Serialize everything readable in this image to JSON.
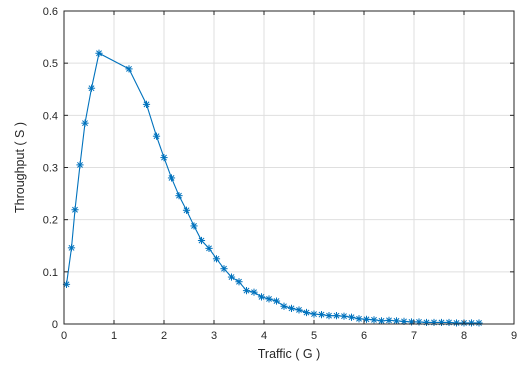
{
  "chart_data": {
    "type": "line",
    "title": "",
    "xlabel": "Traffic ( G )",
    "ylabel": "Throughput ( S )",
    "xlim": [
      0,
      9
    ],
    "ylim": [
      0,
      0.6
    ],
    "xticks": [
      0,
      1,
      2,
      3,
      4,
      5,
      6,
      7,
      8,
      9
    ],
    "yticks": [
      0,
      0.1,
      0.2,
      0.3,
      0.4,
      0.5,
      0.6
    ],
    "xtick_labels": [
      "0",
      "1",
      "2",
      "3",
      "4",
      "5",
      "6",
      "7",
      "8",
      "9"
    ],
    "ytick_labels": [
      "0",
      "0.1",
      "0.2",
      "0.3",
      "0.4",
      "0.5",
      "0.6"
    ],
    "grid": true,
    "legend": "none",
    "marker": "asterisk",
    "line_color": "#0072BD",
    "series": [
      {
        "x": [
          0.05,
          0.15,
          0.22,
          0.32,
          0.42,
          0.55,
          0.7,
          1.3,
          1.65,
          1.85,
          2.0,
          2.15,
          2.3,
          2.45,
          2.6,
          2.75,
          2.9,
          3.05,
          3.2,
          3.35,
          3.5,
          3.65,
          3.8,
          3.95,
          4.1,
          4.25,
          4.4,
          4.55,
          4.7,
          4.85,
          5.0,
          5.15,
          5.3,
          5.45,
          5.6,
          5.75,
          5.9,
          6.05,
          6.2,
          6.35,
          6.5,
          6.65,
          6.8,
          6.95,
          7.1,
          7.25,
          7.4,
          7.55,
          7.7,
          7.85,
          8.0,
          8.15,
          8.3
        ],
        "y": [
          0.076,
          0.146,
          0.219,
          0.305,
          0.385,
          0.452,
          0.519,
          0.489,
          0.421,
          0.36,
          0.319,
          0.28,
          0.246,
          0.218,
          0.188,
          0.16,
          0.145,
          0.125,
          0.106,
          0.09,
          0.081,
          0.064,
          0.061,
          0.052,
          0.048,
          0.044,
          0.034,
          0.03,
          0.027,
          0.022,
          0.019,
          0.018,
          0.016,
          0.016,
          0.015,
          0.013,
          0.01,
          0.009,
          0.008,
          0.006,
          0.007,
          0.006,
          0.005,
          0.004,
          0.004,
          0.003,
          0.003,
          0.003,
          0.003,
          0.002,
          0.002,
          0.002,
          0.002
        ]
      }
    ]
  }
}
